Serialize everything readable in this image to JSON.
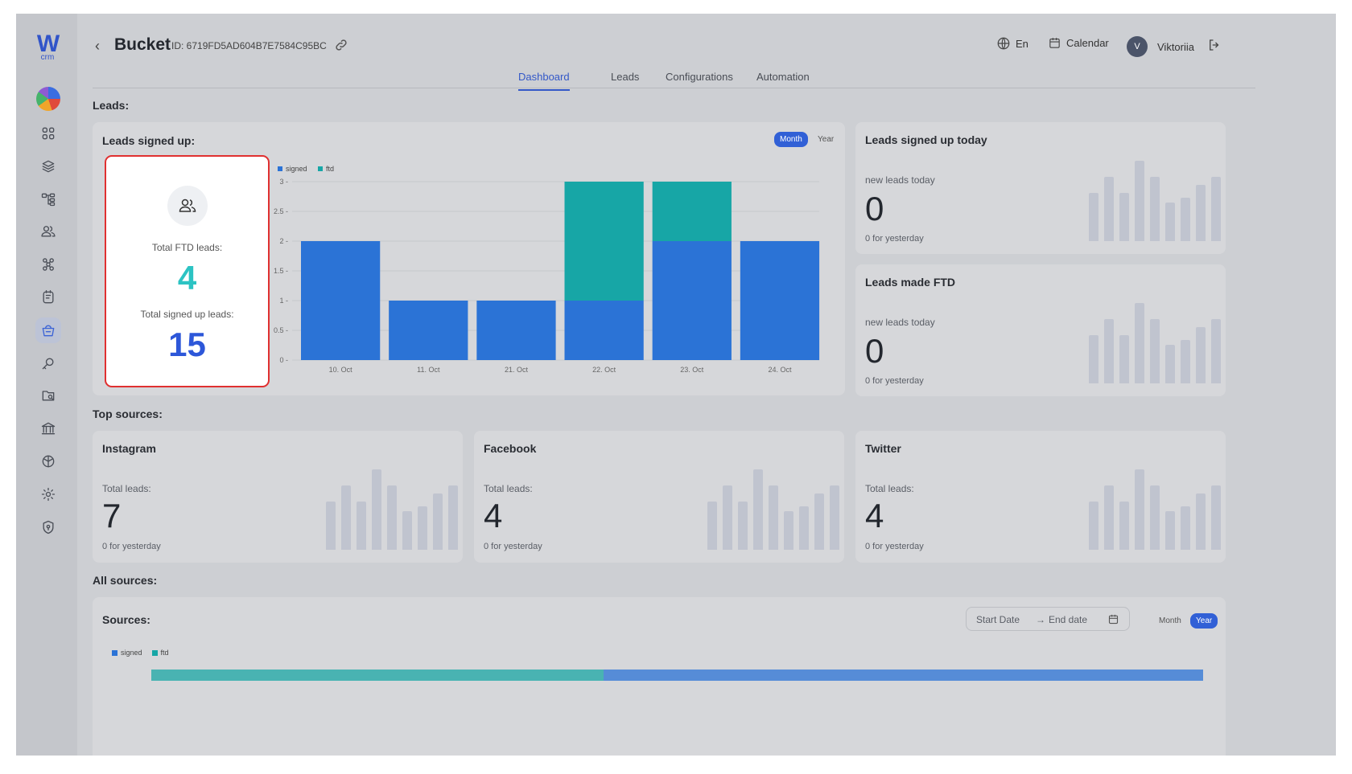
{
  "app": {
    "logo_letter": "W",
    "logo_sub": "crm"
  },
  "sidebar": {
    "items": [
      {
        "name": "dashboard"
      },
      {
        "name": "layers"
      },
      {
        "name": "structure"
      },
      {
        "name": "users"
      },
      {
        "name": "network"
      },
      {
        "name": "tasks"
      },
      {
        "name": "bucket"
      },
      {
        "name": "search-key"
      },
      {
        "name": "folders"
      },
      {
        "name": "bank"
      },
      {
        "name": "box"
      },
      {
        "name": "settings"
      },
      {
        "name": "shield"
      }
    ],
    "active_index": 6
  },
  "header": {
    "back": "‹",
    "title": "Bucket",
    "bucket_id": "ID: 6719FD5AD604B7E7584C95BC",
    "language": "En",
    "calendar": "Calendar",
    "user_initial": "V",
    "user_name": "Viktoriia"
  },
  "tabs": [
    {
      "label": "Dashboard",
      "active": true
    },
    {
      "label": "Leads",
      "active": false
    },
    {
      "label": "Configurations",
      "active": false
    },
    {
      "label": "Automation",
      "active": false
    }
  ],
  "leads_section": {
    "label": "Leads:"
  },
  "signed_up_card": {
    "title": "Leads signed up:",
    "toggle_month": "Month",
    "toggle_year": "Year",
    "active_toggle": "Month",
    "ftd_label": "Total FTD leads:",
    "ftd_value": "4",
    "signed_label": "Total signed up leads:",
    "signed_value": "15"
  },
  "colors": {
    "signed": "#2b73d6",
    "ftd": "#17a6a6",
    "ftd_value": "#2cc3c3",
    "signed_value": "#2d57d9"
  },
  "chart_data": {
    "type": "bar",
    "stacked": true,
    "categories": [
      "10. Oct",
      "11. Oct",
      "21. Oct",
      "22. Oct",
      "23. Oct",
      "24. Oct"
    ],
    "series": [
      {
        "name": "signed",
        "values": [
          2,
          1,
          1,
          1,
          2,
          2
        ]
      },
      {
        "name": "ftd",
        "values": [
          0,
          0,
          0,
          2,
          1,
          0
        ]
      }
    ],
    "yticks": [
      "0",
      "0.5",
      "1",
      "1.5",
      "2",
      "2.5",
      "3"
    ],
    "ylim": [
      0,
      3
    ],
    "legend": "top-left",
    "grid": true
  },
  "today_card": {
    "title": "Leads signed up today",
    "label": "new leads today",
    "value": "0",
    "sub": "0 for yesterday",
    "sparks": [
      60,
      80,
      60,
      100,
      80,
      48,
      54,
      70,
      80
    ]
  },
  "ftd_card": {
    "title": "Leads made FTD",
    "label": "new leads today",
    "value": "0",
    "sub": "0 for yesterday",
    "sparks": [
      60,
      80,
      60,
      100,
      80,
      48,
      54,
      70,
      80
    ]
  },
  "top_sources": {
    "label": "Top sources:",
    "items": [
      {
        "title": "Instagram",
        "label": "Total leads:",
        "value": "7",
        "sub": "0 for yesterday",
        "sparks": [
          60,
          80,
          60,
          100,
          80,
          48,
          54,
          70,
          80
        ]
      },
      {
        "title": "Facebook",
        "label": "Total leads:",
        "value": "4",
        "sub": "0 for yesterday",
        "sparks": [
          60,
          80,
          60,
          100,
          80,
          48,
          54,
          70,
          80
        ]
      },
      {
        "title": "Twitter",
        "label": "Total leads:",
        "value": "4",
        "sub": "0 for yesterday",
        "sparks": [
          60,
          80,
          60,
          100,
          80,
          48,
          54,
          70,
          80
        ]
      }
    ]
  },
  "all_sources": {
    "label": "All sources:",
    "title": "Sources:",
    "start_placeholder": "Start Date",
    "arrow": "→",
    "end_placeholder": "End date",
    "toggle_month": "Month",
    "toggle_year": "Year",
    "legend_signed": "signed",
    "legend_ftd": "ftd"
  }
}
